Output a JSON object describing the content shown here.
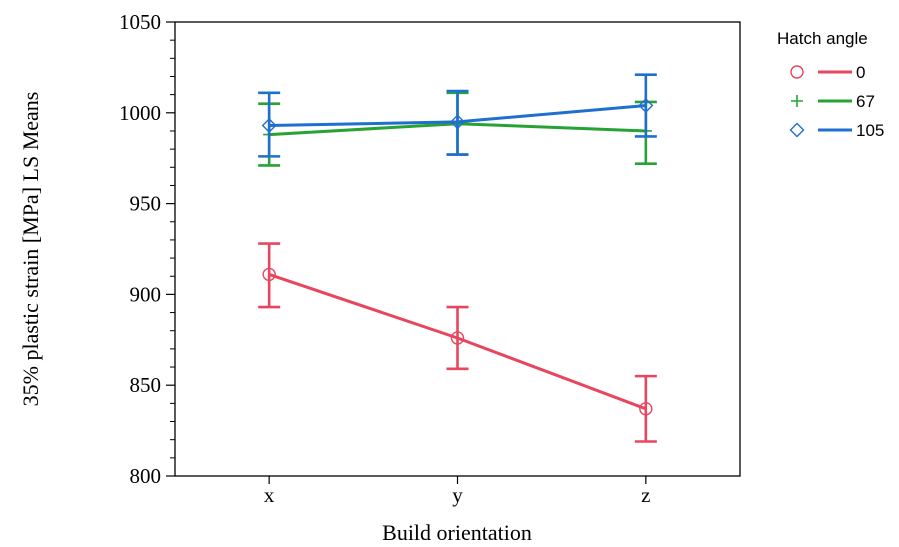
{
  "chart_data": {
    "type": "line",
    "title": "",
    "xlabel": "Build orientation",
    "ylabel": "35% plastic strain [MPa] LS Means",
    "categories": [
      "x",
      "y",
      "z"
    ],
    "ylim": [
      800,
      1050
    ],
    "yticks": [
      800,
      850,
      900,
      950,
      1000,
      1050
    ],
    "grid": false,
    "legend": {
      "title": "Hatch angle",
      "placement": "right"
    },
    "series": [
      {
        "name": "0",
        "color": "#e8465f",
        "marker": "circle",
        "values": [
          911,
          876,
          837
        ],
        "lower": [
          893,
          859,
          819
        ],
        "upper": [
          928,
          893,
          855
        ]
      },
      {
        "name": "67",
        "color": "#27a335",
        "marker": "plus",
        "values": [
          988,
          994,
          990
        ],
        "lower": [
          971,
          977,
          972
        ],
        "upper": [
          1005,
          1011,
          1006
        ]
      },
      {
        "name": "105",
        "color": "#1f6fd1",
        "marker": "diamond",
        "values": [
          993,
          995,
          1004
        ],
        "lower": [
          976,
          977,
          987
        ],
        "upper": [
          1011,
          1012,
          1021
        ]
      }
    ]
  }
}
